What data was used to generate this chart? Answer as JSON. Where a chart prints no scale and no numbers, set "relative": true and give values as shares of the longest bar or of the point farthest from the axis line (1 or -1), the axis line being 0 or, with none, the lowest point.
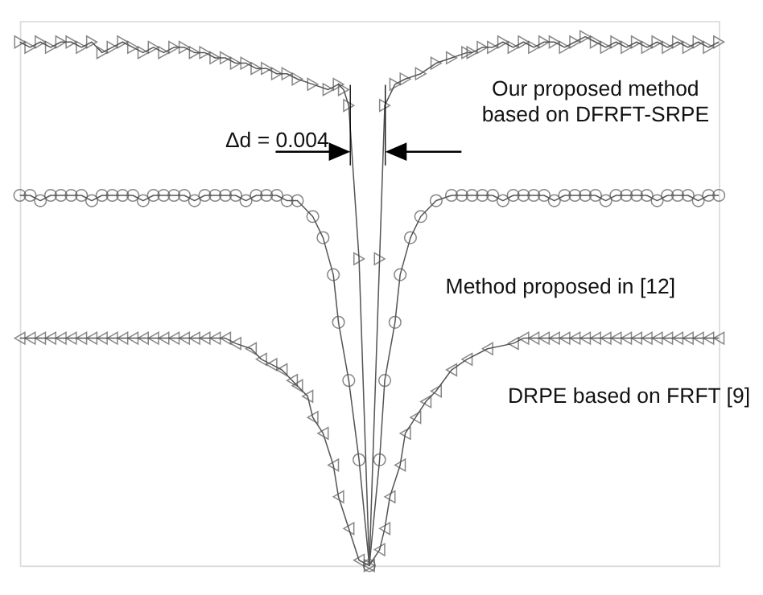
{
  "chart_data": {
    "type": "line",
    "relative": true,
    "line_style": "solid",
    "categories": [
      null,
      null,
      null,
      null,
      null,
      null,
      null,
      null,
      null,
      null,
      null,
      null,
      null,
      null,
      null,
      null,
      null,
      null,
      null,
      null,
      null,
      null,
      null,
      null,
      null,
      null,
      null,
      null,
      null,
      null,
      null,
      null,
      null,
      null,
      null,
      null,
      null,
      null,
      null,
      null,
      null,
      null,
      null,
      null,
      null,
      null,
      null,
      null,
      null,
      null,
      null,
      null,
      null,
      null,
      null,
      null,
      null,
      null,
      null,
      null,
      null,
      null,
      null,
      null,
      null,
      null,
      null,
      null,
      null,
      null,
      null,
      null,
      null,
      null,
      null,
      null,
      null,
      null,
      null,
      null,
      null,
      null,
      null,
      null,
      null,
      null,
      null,
      null,
      null,
      null,
      null,
      null,
      null,
      null,
      null,
      null,
      null,
      null,
      null,
      null,
      null,
      null,
      null,
      null,
      null,
      null,
      null,
      null,
      null,
      null,
      null,
      null,
      null,
      null,
      null,
      null,
      null,
      null,
      null,
      null,
      null,
      null,
      null,
      null,
      null,
      null,
      null,
      null,
      null,
      null,
      null,
      null,
      null,
      null,
      null,
      null,
      null
    ],
    "annotations": [
      "Δd = 0.004"
    ],
    "series": [
      {
        "name": "Our proposed method based on DFRFT-SRPE",
        "color": "#555555",
        "marker": "triangle",
        "values": [
          0.99,
          null,
          0.98,
          null,
          0.99,
          null,
          0.98,
          null,
          0.99,
          null,
          0.99,
          null,
          0.98,
          null,
          0.99,
          null,
          0.97,
          null,
          0.98,
          null,
          0.99,
          null,
          0.98,
          null,
          0.97,
          null,
          0.98,
          null,
          0.97,
          null,
          0.98,
          null,
          0.98,
          null,
          0.97,
          null,
          0.97,
          null,
          0.96,
          null,
          0.96,
          null,
          0.95,
          null,
          0.95,
          null,
          0.94,
          null,
          0.94,
          null,
          0.93,
          null,
          0.93,
          null,
          0.92,
          null,
          null,
          0.91,
          null,
          null,
          0.9,
          null,
          0.91,
          0.9,
          0.87,
          null,
          0.58,
          null,
          0,
          null,
          0.58,
          0.87,
          null,
          0.91,
          null,
          0.92,
          null,
          null,
          0.93,
          null,
          null,
          0.95,
          null,
          null,
          0.96,
          null,
          null,
          0.97,
          0.97,
          null,
          0.98,
          null,
          0.98,
          null,
          0.99,
          null,
          0.98,
          null,
          0.99,
          null,
          0.98,
          null,
          0.99,
          null,
          0.99,
          null,
          0.98,
          null,
          0.99,
          null,
          1.0,
          null,
          0.99,
          null,
          0.98,
          null,
          0.99,
          null,
          0.98,
          null,
          0.99,
          null,
          0.98,
          null,
          0.99,
          null,
          0.98,
          null,
          0.99,
          null,
          0.98,
          null,
          0.99,
          null,
          0.98,
          null,
          0.99
        ]
      },
      {
        "name": "Method proposed in [12]",
        "color": "#555555",
        "marker": "circle",
        "values": [
          0.7,
          null,
          0.7,
          null,
          0.69,
          null,
          0.7,
          null,
          0.7,
          null,
          0.7,
          null,
          0.7,
          null,
          0.69,
          null,
          0.7,
          null,
          0.7,
          null,
          0.7,
          null,
          0.7,
          null,
          0.69,
          null,
          0.7,
          null,
          0.7,
          null,
          0.7,
          null,
          0.7,
          null,
          0.69,
          null,
          0.7,
          null,
          0.7,
          null,
          0.7,
          null,
          0.7,
          null,
          0.69,
          null,
          0.7,
          null,
          0.7,
          null,
          0.7,
          null,
          0.69,
          null,
          0.69,
          null,
          null,
          0.66,
          null,
          0.62,
          null,
          0.55,
          0.46,
          null,
          0.35,
          null,
          0.2,
          null,
          0,
          null,
          0.2,
          0.35,
          null,
          0.46,
          0.55,
          null,
          0.62,
          null,
          0.66,
          null,
          null,
          0.69,
          null,
          null,
          0.7,
          null,
          0.7,
          null,
          0.7,
          null,
          0.7,
          null,
          0.7,
          null,
          0.69,
          null,
          0.7,
          null,
          0.7,
          null,
          0.7,
          null,
          0.7,
          null,
          0.69,
          null,
          0.7,
          null,
          0.7,
          null,
          0.7,
          null,
          0.7,
          null,
          0.69,
          null,
          0.7,
          null,
          0.7,
          null,
          0.7,
          null,
          0.7,
          null,
          0.69,
          null,
          0.7,
          null,
          0.7,
          null,
          0.7,
          null,
          0.69,
          null,
          0.7,
          null,
          0.7
        ]
      },
      {
        "name": "DRPE based on FRFT [9]",
        "color": "#555555",
        "marker": "triangle",
        "values": [
          0.43,
          null,
          0.43,
          null,
          0.43,
          null,
          0.43,
          null,
          0.43,
          null,
          0.43,
          null,
          0.43,
          null,
          0.43,
          null,
          0.43,
          null,
          0.43,
          null,
          0.43,
          null,
          0.43,
          null,
          0.43,
          null,
          0.43,
          null,
          0.43,
          null,
          0.43,
          null,
          0.43,
          null,
          0.43,
          null,
          0.43,
          null,
          0.43,
          null,
          0.43,
          null,
          0.42,
          null,
          null,
          0.41,
          null,
          0.39,
          null,
          0.38,
          null,
          0.37,
          null,
          0.35,
          0.34,
          null,
          0.32,
          0.28,
          null,
          0.25,
          null,
          0.19,
          0.13,
          null,
          0.07,
          null,
          0.01,
          null,
          0,
          null,
          0.03,
          0.07,
          0.13,
          null,
          0.19,
          0.25,
          null,
          0.28,
          null,
          0.31,
          null,
          0.33,
          null,
          null,
          0.37,
          null,
          null,
          0.39,
          null,
          null,
          null,
          0.41,
          null,
          null,
          null,
          null,
          0.42,
          null,
          0.43,
          null,
          0.43,
          null,
          0.43,
          null,
          0.43,
          null,
          0.43,
          null,
          0.43,
          null,
          0.43,
          null,
          0.43,
          null,
          0.43,
          null,
          0.43,
          null,
          0.43,
          null,
          0.43,
          null,
          0.43,
          null,
          0.43,
          null,
          0.43,
          null,
          0.43,
          null,
          0.43,
          null,
          0.43,
          null,
          0.43,
          null,
          0.43
        ]
      }
    ]
  }
}
